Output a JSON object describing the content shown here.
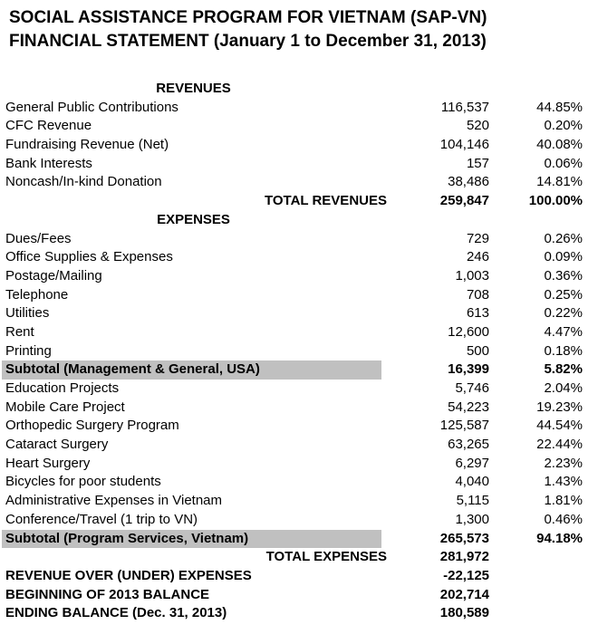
{
  "title": {
    "line1": "SOCIAL ASSISTANCE PROGRAM FOR VIETNAM (SAP-VN)",
    "line2": "FINANCIAL STATEMENT (January 1 to December 31, 2013)"
  },
  "colors": {
    "page_background": "#ffffff",
    "text": "#000000",
    "subtotal_highlight": "#c0c0c0"
  },
  "statement": {
    "rows": [
      {
        "type": "section",
        "label": "REVENUES",
        "amount": "",
        "percent": ""
      },
      {
        "type": "item",
        "label": "General Public Contributions",
        "amount": "116,537",
        "percent": "44.85%"
      },
      {
        "type": "item",
        "label": "CFC Revenue",
        "amount": "520",
        "percent": "0.20%"
      },
      {
        "type": "item",
        "label": "Fundraising Revenue (Net)",
        "amount": "104,146",
        "percent": "40.08%"
      },
      {
        "type": "item",
        "label": "Bank Interests",
        "amount": "157",
        "percent": "0.06%"
      },
      {
        "type": "item",
        "label": "Noncash/In-kind Donation",
        "amount": "38,486",
        "percent": "14.81%"
      },
      {
        "type": "total",
        "label": "TOTAL REVENUES",
        "amount": "259,847",
        "percent": "100.00%"
      },
      {
        "type": "section",
        "label": "EXPENSES",
        "amount": "",
        "percent": ""
      },
      {
        "type": "item",
        "label": "Dues/Fees",
        "amount": "729",
        "percent": "0.26%"
      },
      {
        "type": "item",
        "label": "Office Supplies & Expenses",
        "amount": "246",
        "percent": "0.09%"
      },
      {
        "type": "item",
        "label": "Postage/Mailing",
        "amount": "1,003",
        "percent": "0.36%"
      },
      {
        "type": "item",
        "label": "Telephone",
        "amount": "708",
        "percent": "0.25%"
      },
      {
        "type": "item",
        "label": "Utilities",
        "amount": "613",
        "percent": "0.22%"
      },
      {
        "type": "item",
        "label": "Rent",
        "amount": "12,600",
        "percent": "4.47%"
      },
      {
        "type": "item",
        "label": "Printing",
        "amount": "500",
        "percent": "0.18%"
      },
      {
        "type": "subtotal",
        "label": "Subtotal (Management & General, USA)",
        "amount": "16,399",
        "percent": "5.82%"
      },
      {
        "type": "item",
        "label": "Education Projects",
        "amount": "5,746",
        "percent": "2.04%"
      },
      {
        "type": "item",
        "label": "Mobile Care Project",
        "amount": "54,223",
        "percent": "19.23%"
      },
      {
        "type": "item",
        "label": "Orthopedic Surgery Program",
        "amount": "125,587",
        "percent": "44.54%"
      },
      {
        "type": "item",
        "label": "Cataract Surgery",
        "amount": "63,265",
        "percent": "22.44%"
      },
      {
        "type": "item",
        "label": "Heart Surgery",
        "amount": "6,297",
        "percent": "2.23%"
      },
      {
        "type": "item",
        "label": "Bicycles for poor students",
        "amount": "4,040",
        "percent": "1.43%"
      },
      {
        "type": "item",
        "label": "Administrative Expenses in Vietnam",
        "amount": "5,115",
        "percent": "1.81%"
      },
      {
        "type": "item",
        "label": "Conference/Travel (1 trip to VN)",
        "amount": "1,300",
        "percent": "0.46%"
      },
      {
        "type": "subtotal",
        "label": "Subtotal (Program Services, Vietnam)",
        "amount": "265,573",
        "percent": "94.18%"
      },
      {
        "type": "total",
        "label": "TOTAL EXPENSES",
        "amount": "281,972",
        "percent": ""
      },
      {
        "type": "summary",
        "label": "REVENUE OVER (UNDER) EXPENSES",
        "amount": "-22,125",
        "percent": ""
      },
      {
        "type": "summary",
        "label": "BEGINNING OF 2013 BALANCE",
        "amount": "202,714",
        "percent": ""
      },
      {
        "type": "summary",
        "label": "ENDING BALANCE (Dec. 31, 2013)",
        "amount": "180,589",
        "percent": ""
      }
    ]
  }
}
